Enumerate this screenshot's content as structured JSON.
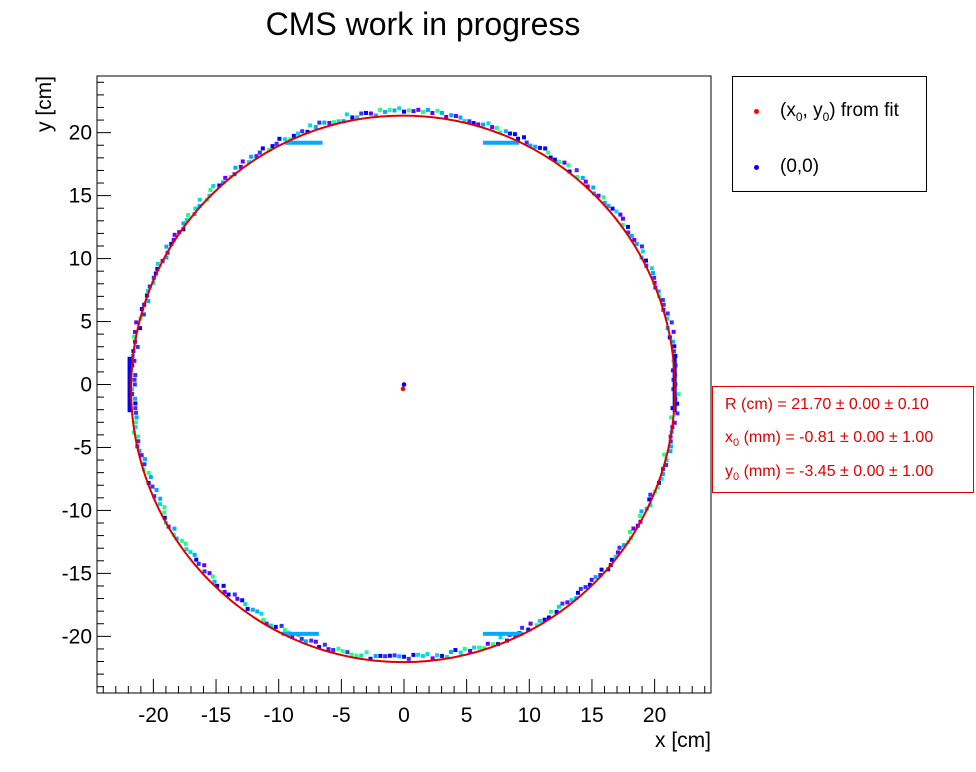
{
  "title": "CMS work in progress",
  "legend": {
    "items": [
      {
        "label_main": "(x",
        "sub1": "0",
        "mid": ", y",
        "sub2": "0",
        "tail": ") from fit",
        "color": "#ff0000"
      },
      {
        "label": "(0,0)",
        "color": "#0000ff"
      }
    ]
  },
  "stats": {
    "r_label": "R (cm)  = 21.70 ± 0.00 ± 0.10",
    "x0_pre": "x",
    "x0_sub": "0",
    "x0_rest": " (mm)  = -0.81 ± 0.00 ± 1.00",
    "y0_pre": "y",
    "y0_sub": "0",
    "y0_rest": " (mm)  = -3.45 ± 0.00 ± 1.00",
    "color": "#e00000"
  },
  "chart_data": {
    "type": "scatter",
    "title": "CMS work in progress",
    "xlabel": "x [cm]",
    "ylabel": "y [cm]",
    "xlim": [
      -24.5,
      24.5
    ],
    "ylim": [
      -24.5,
      24.5
    ],
    "x_ticks": [
      -20,
      -15,
      -10,
      -5,
      0,
      5,
      10,
      15,
      20
    ],
    "y_ticks": [
      -20,
      -15,
      -10,
      -5,
      0,
      5,
      10,
      15,
      20
    ],
    "grid": false,
    "legend_position": "top-right",
    "fit_circle": {
      "r": 21.7,
      "x0": -0.081,
      "y0": -0.345,
      "color": "#e00000"
    },
    "points": [
      {
        "name": "(x0, y0) from fit",
        "x": -0.081,
        "y": -0.345,
        "color": "#ff0000"
      },
      {
        "name": "(0,0)",
        "x": 0,
        "y": 0,
        "color": "#0000ff"
      }
    ],
    "hit_map": {
      "radius": 21.7,
      "colors": [
        "#0000ff",
        "#3333ff",
        "#00aaff",
        "#00dddd",
        "#22ff88",
        "#6600ff"
      ],
      "bars": [
        {
          "x1": -9.5,
          "x2": -6.5,
          "y": 19.2
        },
        {
          "x1": 6.3,
          "x2": 9.2,
          "y": 19.2
        },
        {
          "x1": -9.8,
          "x2": -6.8,
          "y": -19.8
        },
        {
          "x1": 6.3,
          "x2": 9.5,
          "y": -19.8
        },
        {
          "x": -21.9,
          "y1": -2.2,
          "y2": 2.2
        },
        {
          "x": 21.6,
          "y1": -2.2,
          "y2": 2.2
        }
      ]
    }
  }
}
